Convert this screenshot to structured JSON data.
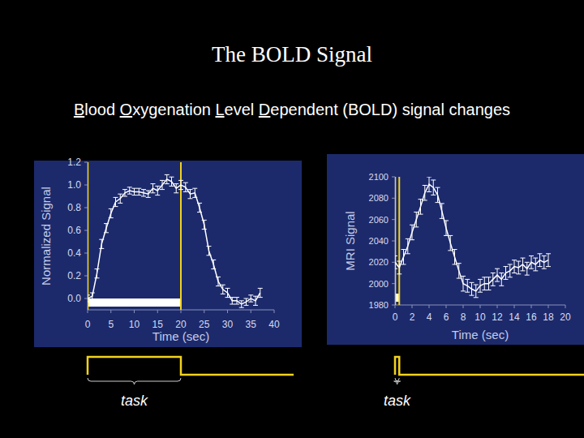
{
  "slide": {
    "title": "The BOLD Signal",
    "subtitle": "Blood Oxygenation Level Dependent (BOLD) signal changes"
  },
  "chart_data": [
    {
      "type": "line",
      "x_label": "Time (sec)",
      "y_label": "Normalized Signal",
      "annotation": "task",
      "stimulus": [
        0,
        20
      ],
      "xlim": [
        0,
        40
      ],
      "xticks": [
        0,
        5,
        10,
        15,
        20,
        25,
        30,
        35,
        40
      ],
      "ylim": [
        -0.1,
        1.2
      ],
      "yticks": [
        {
          "value": 0,
          "label": "0.0"
        },
        0.2,
        0.4,
        0.6,
        0.8,
        {
          "value": 1,
          "label": "1.0"
        },
        1.2
      ],
      "grid": false,
      "x": [
        0,
        1,
        2,
        3,
        4,
        5,
        6,
        7,
        8,
        9,
        10,
        11,
        12,
        13,
        14,
        15,
        16,
        17,
        18,
        19,
        20,
        21,
        22,
        23,
        24,
        25,
        26,
        27,
        28,
        29,
        30,
        31,
        32,
        33,
        34,
        35,
        36,
        37
      ],
      "series": [
        {
          "color": "#ffffff",
          "values": [
            0.0,
            0.02,
            0.22,
            0.48,
            0.62,
            0.75,
            0.85,
            0.88,
            0.93,
            0.95,
            0.94,
            0.94,
            0.93,
            0.92,
            0.97,
            0.95,
            1.0,
            1.05,
            1.03,
            0.97,
            1.0,
            0.98,
            0.92,
            0.93,
            0.8,
            0.65,
            0.42,
            0.3,
            0.15,
            0.08,
            0.05,
            -0.02,
            -0.02,
            -0.05,
            -0.03,
            0.0,
            -0.02,
            0.05
          ],
          "errors": [
            0.03,
            0.03,
            0.04,
            0.04,
            0.04,
            0.04,
            0.04,
            0.04,
            0.03,
            0.03,
            0.03,
            0.03,
            0.03,
            0.03,
            0.04,
            0.04,
            0.04,
            0.04,
            0.04,
            0.04,
            0.04,
            0.04,
            0.04,
            0.04,
            0.04,
            0.04,
            0.04,
            0.04,
            0.04,
            0.04,
            0.04,
            0.03,
            0.03,
            0.03,
            0.03,
            0.03,
            0.04,
            0.04
          ]
        }
      ]
    },
    {
      "type": "line",
      "x_label": "Time (sec)",
      "y_label": "MRI Signal",
      "annotation": "task",
      "stimulus": [
        0,
        0.5
      ],
      "xlim": [
        0,
        20
      ],
      "xticks": [
        0,
        2,
        4,
        6,
        8,
        10,
        12,
        14,
        16,
        18,
        20
      ],
      "ylim": [
        1980,
        2100
      ],
      "yticks": [
        1980,
        2000,
        2020,
        2040,
        2060,
        2080,
        2100
      ],
      "grid": false,
      "x": [
        0,
        0.5,
        1,
        1.5,
        2,
        2.5,
        3,
        3.5,
        4,
        4.5,
        5,
        5.5,
        6,
        6.5,
        7,
        7.5,
        8,
        8.5,
        9,
        9.5,
        10,
        10.5,
        11,
        11.5,
        12,
        12.5,
        13,
        13.5,
        14,
        14.5,
        15,
        15.5,
        16,
        16.5,
        17,
        17.5,
        18
      ],
      "series": [
        {
          "color": "#ffffff",
          "values": [
            2020,
            2015,
            2025,
            2035,
            2048,
            2060,
            2072,
            2085,
            2093,
            2090,
            2083,
            2068,
            2052,
            2038,
            2025,
            2012,
            2000,
            1998,
            1995,
            1993,
            1998,
            2000,
            2000,
            2004,
            2008,
            2004,
            2010,
            2012,
            2016,
            2015,
            2018,
            2014,
            2020,
            2018,
            2022,
            2020,
            2022
          ],
          "errors": [
            6,
            6,
            7,
            7,
            7,
            7,
            7,
            7,
            7,
            7,
            7,
            7,
            7,
            7,
            7,
            7,
            7,
            6,
            6,
            6,
            6,
            6,
            6,
            6,
            6,
            6,
            6,
            6,
            6,
            6,
            6,
            6,
            6,
            6,
            6,
            6,
            6
          ]
        }
      ]
    }
  ]
}
